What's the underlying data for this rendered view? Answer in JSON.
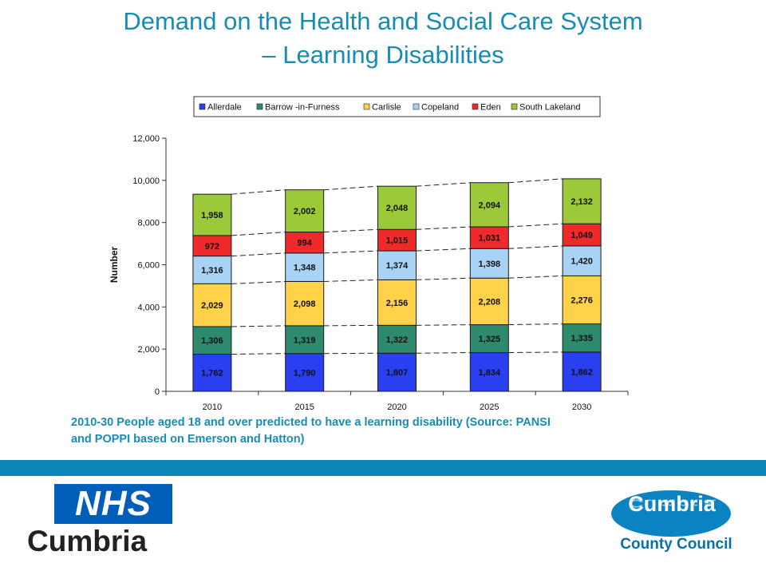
{
  "slide": {
    "title_line1": "Demand on the Health and Social Care System",
    "title_line2": "– Learning Disabilities",
    "caption_line1": "2010-30 People aged 18 and over predicted to have a learning disability (Source: PANSI",
    "caption_line2": "and POPPI based on Emerson and Hatton)"
  },
  "logos": {
    "nhs_mark": "NHS",
    "nhs_name": "Cumbria",
    "council_mark": "Cumbria",
    "council_name": "County Council"
  },
  "colors": {
    "title": "#1a8bb3",
    "band": "#0d84b8"
  },
  "chart_data": {
    "type": "bar",
    "stacked": true,
    "categories": [
      "2010",
      "2015",
      "2020",
      "2025",
      "2030"
    ],
    "series": [
      {
        "name": "Allerdale",
        "color": "#2a3ff0",
        "values": [
          1762,
          1790,
          1807,
          1834,
          1862
        ],
        "labels": [
          "1,762",
          "1,790",
          "1,807",
          "1,834",
          "1,862"
        ]
      },
      {
        "name": "Barrow -in-Furness",
        "color": "#2e8a6e",
        "values": [
          1306,
          1319,
          1322,
          1325,
          1335
        ],
        "labels": [
          "1,306",
          "1,319",
          "1,322",
          "1,325",
          "1,335"
        ]
      },
      {
        "name": "Carlisle",
        "color": "#ffd24a",
        "values": [
          2029,
          2098,
          2156,
          2208,
          2276
        ],
        "labels": [
          "2,029",
          "2,098",
          "2,156",
          "2,208",
          "2,276"
        ]
      },
      {
        "name": "Copeland",
        "color": "#a9d3f5",
        "values": [
          1316,
          1348,
          1374,
          1398,
          1420
        ],
        "labels": [
          "1,316",
          "1,348",
          "1,374",
          "1,398",
          "1,420"
        ]
      },
      {
        "name": "Eden",
        "color": "#ee2a2a",
        "values": [
          972,
          994,
          1015,
          1031,
          1049
        ],
        "labels": [
          "972",
          "994",
          "1,015",
          "1,031",
          "1,049"
        ]
      },
      {
        "name": "South Lakeland",
        "color": "#9cc93a",
        "values": [
          1958,
          2002,
          2048,
          2094,
          2132
        ],
        "labels": [
          "1,958",
          "2,002",
          "2,048",
          "2,094",
          "2,132"
        ]
      }
    ],
    "title": "",
    "xlabel": "",
    "ylabel": "Number",
    "ylim": [
      0,
      12000
    ],
    "yticks": [
      0,
      2000,
      4000,
      6000,
      8000,
      10000,
      12000
    ],
    "ytick_labels": [
      "0",
      "2,000",
      "4,000",
      "6,000",
      "8,000",
      "10,000",
      "12,000"
    ],
    "grid": false,
    "series_lines": "dashed",
    "legend_position": "top"
  }
}
